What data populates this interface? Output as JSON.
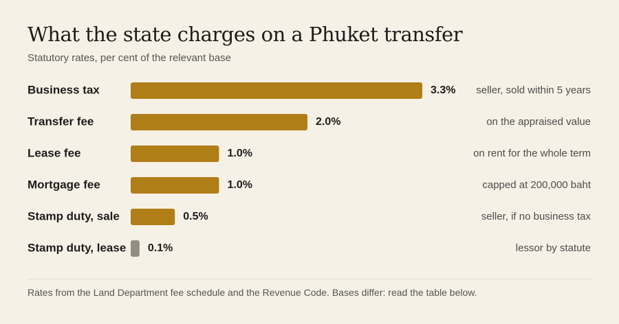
{
  "title": "What the state charges on a Phuket transfer",
  "subtitle": "Statutory rates, per cent of the relevant base",
  "footnote": "Rates from the Land Department fee schedule and the Revenue Code. Bases differ: read the table below.",
  "colors": {
    "bar": "#b07e17",
    "bar_muted": "#948d82"
  },
  "chart_data": {
    "type": "bar",
    "orientation": "horizontal",
    "categories": [
      "Business tax",
      "Transfer fee",
      "Lease fee",
      "Mortgage fee",
      "Stamp duty, sale",
      "Stamp duty, lease"
    ],
    "values": [
      3.3,
      2.0,
      1.0,
      1.0,
      0.5,
      0.1
    ],
    "value_labels": [
      "3.3%",
      "2.0%",
      "1.0%",
      "1.0%",
      "0.5%",
      "0.1%"
    ],
    "notes": [
      "seller, sold within 5 years",
      "on the appraised value",
      "on rent for the whole term",
      "capped at 200,000 baht",
      "seller, if no business tax",
      "lessor by statute"
    ],
    "xlim": [
      0,
      3.3
    ],
    "grid": false,
    "legend": "none"
  }
}
